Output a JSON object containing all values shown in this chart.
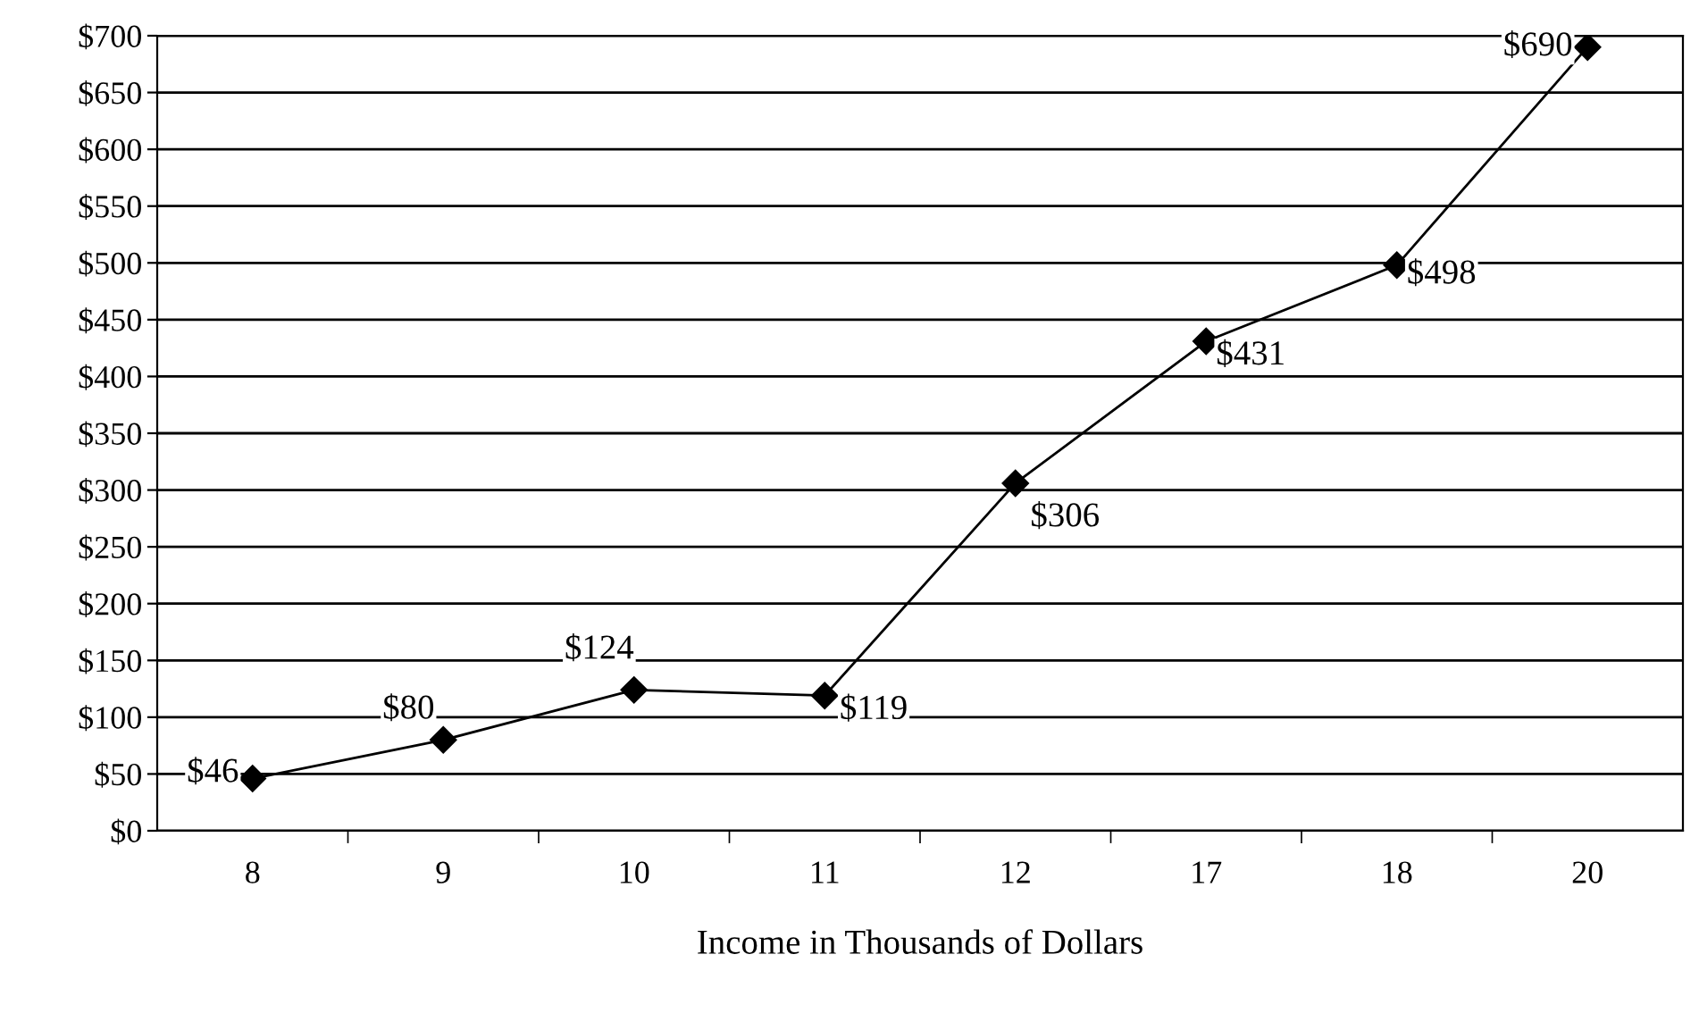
{
  "chart_data": {
    "type": "line",
    "xlabel": "Income in Thousands of Dollars",
    "categories": [
      "8",
      "9",
      "10",
      "11",
      "12",
      "17",
      "18",
      "20"
    ],
    "series": [
      {
        "color": "#000000",
        "values": [
          46,
          80,
          124,
          119,
          306,
          431,
          498,
          690
        ],
        "value_labels": [
          "$46",
          "$80",
          "$124",
          "$119",
          "$306",
          "$431",
          "$498",
          "$690"
        ]
      }
    ],
    "ylim": [
      0,
      700
    ],
    "yticks": [
      {
        "value": 0,
        "label": "$0"
      },
      {
        "value": 50,
        "label": "$50"
      },
      {
        "value": 100,
        "label": "$100"
      },
      {
        "value": 150,
        "label": "$150"
      },
      {
        "value": 200,
        "label": "$200"
      },
      {
        "value": 250,
        "label": "$250"
      },
      {
        "value": 300,
        "label": "$300"
      },
      {
        "value": 350,
        "label": "$350"
      },
      {
        "value": 400,
        "label": "$400"
      },
      {
        "value": 450,
        "label": "$450"
      },
      {
        "value": 500,
        "label": "$500"
      },
      {
        "value": 550,
        "label": "$550"
      },
      {
        "value": 600,
        "label": "$600"
      },
      {
        "value": 650,
        "label": "$650"
      },
      {
        "value": 700,
        "label": "$700"
      }
    ],
    "grid": "y",
    "marker": "diamond",
    "line_style": "solid",
    "legend": false
  }
}
